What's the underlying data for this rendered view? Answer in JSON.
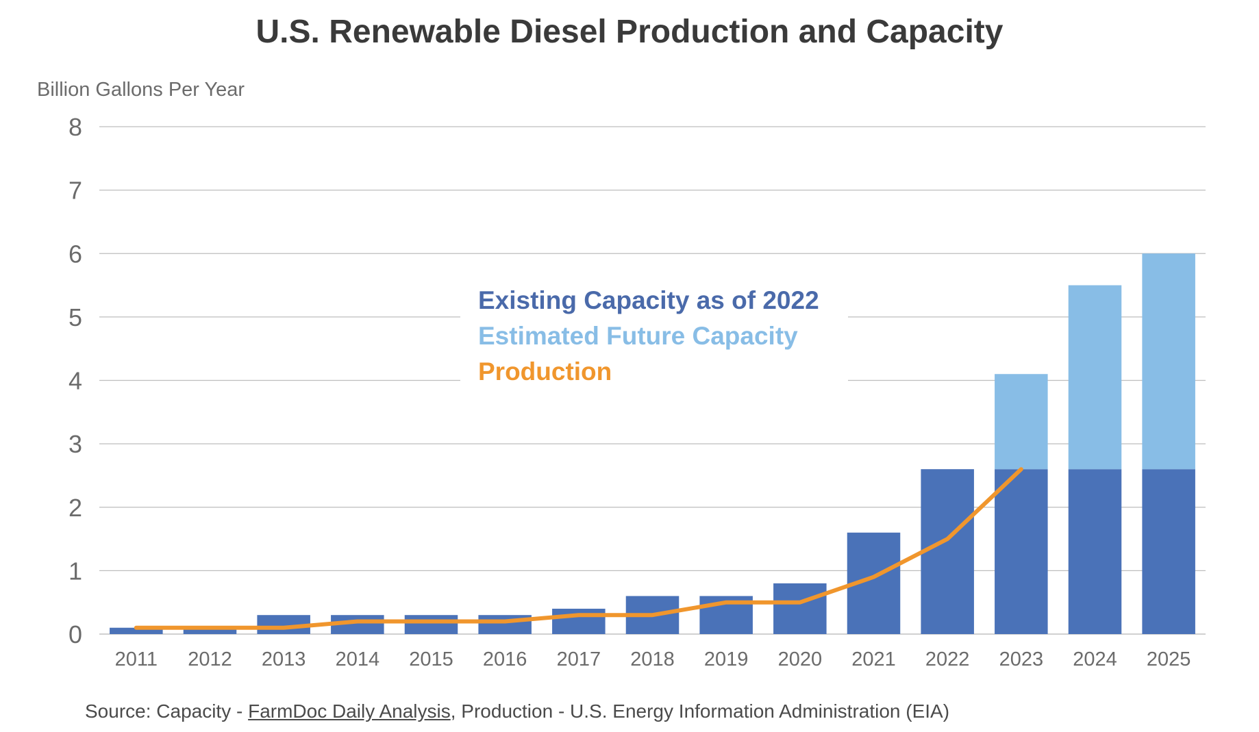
{
  "chart_data": {
    "type": "bar",
    "title": "U.S. Renewable Diesel Production and Capacity",
    "ylabel": "Billion Gallons Per Year",
    "xlabel": "",
    "ylim": [
      0,
      8
    ],
    "yticks": [
      "0",
      "1",
      "2",
      "3",
      "4",
      "5",
      "6",
      "7",
      "8"
    ],
    "categories": [
      "2011",
      "2012",
      "2013",
      "2014",
      "2015",
      "2016",
      "2017",
      "2018",
      "2019",
      "2020",
      "2021",
      "2022",
      "2023",
      "2024",
      "2025"
    ],
    "stacked": true,
    "grid": true,
    "series": [
      {
        "name": "Existing Capacity as of 2022",
        "kind": "bar",
        "color": "#4a72b8",
        "values": [
          0.1,
          0.1,
          0.3,
          0.3,
          0.3,
          0.3,
          0.4,
          0.6,
          0.6,
          0.8,
          1.6,
          2.6,
          2.6,
          2.6,
          2.6
        ]
      },
      {
        "name": "Estimated Future Capacity",
        "kind": "bar",
        "color": "#88bde6",
        "values": [
          0,
          0,
          0,
          0,
          0,
          0,
          0,
          0,
          0,
          0,
          0,
          0,
          1.5,
          2.9,
          3.4
        ]
      },
      {
        "name": "Production",
        "kind": "line",
        "color": "#f0962d",
        "values": [
          0.1,
          0.1,
          0.1,
          0.2,
          0.2,
          0.2,
          0.3,
          0.3,
          0.5,
          0.5,
          0.9,
          1.5,
          2.6,
          null,
          null
        ]
      }
    ],
    "legend_position": "center"
  },
  "source": {
    "prefix": "Source: Capacity - ",
    "link_text": "FarmDoc Daily Analysis",
    "suffix": ", Production - U.S. Energy Information Administration (EIA)"
  }
}
